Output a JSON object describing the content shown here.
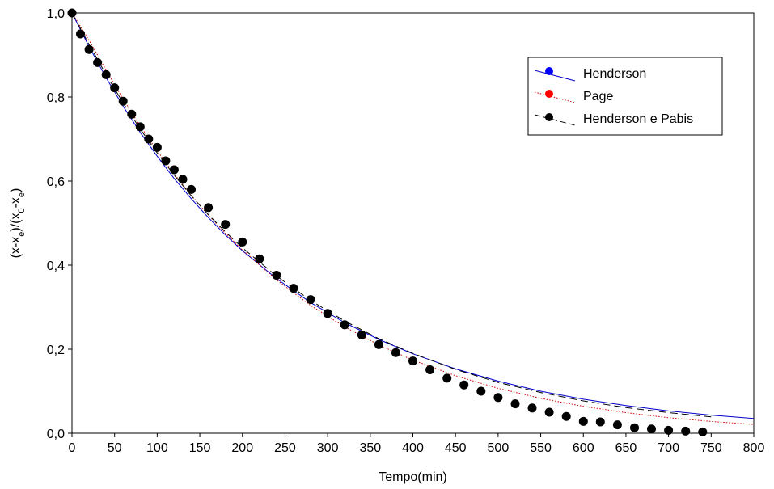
{
  "chart_data": {
    "type": "scatter",
    "xlabel": "Tempo(min)",
    "ylabel_parts": [
      "(x-x",
      "e",
      ")/(x",
      "0",
      "-x",
      "e",
      ")"
    ],
    "xlim": [
      0,
      800
    ],
    "ylim": [
      0.0,
      1.0
    ],
    "xticks": [
      "0",
      "50",
      "100",
      "150",
      "200",
      "250",
      "300",
      "350",
      "400",
      "450",
      "500",
      "550",
      "600",
      "650",
      "700",
      "750",
      "800"
    ],
    "yticks": [
      "0,0",
      "0,2",
      "0,4",
      "0,6",
      "0,8",
      "1,0"
    ],
    "grid": false,
    "legend_position": "top-right",
    "series": [
      {
        "name": "Henderson",
        "kind": "line",
        "style": "solid",
        "color": "#0000cc",
        "marker_color": "#0000ff",
        "x": [
          0,
          20,
          40,
          60,
          80,
          100,
          120,
          140,
          160,
          180,
          200,
          240,
          280,
          320,
          360,
          400,
          450,
          500,
          550,
          600,
          650,
          700,
          750,
          800
        ],
        "y": [
          1.0,
          0.92,
          0.846,
          0.778,
          0.716,
          0.659,
          0.606,
          0.558,
          0.513,
          0.472,
          0.434,
          0.368,
          0.311,
          0.263,
          0.223,
          0.189,
          0.153,
          0.124,
          0.1,
          0.081,
          0.066,
          0.053,
          0.043,
          0.035
        ]
      },
      {
        "name": "Page",
        "kind": "line",
        "style": "dotted",
        "color": "#cc0000",
        "marker_color": "#ff0000",
        "x": [
          0,
          20,
          40,
          60,
          80,
          100,
          120,
          140,
          160,
          180,
          200,
          240,
          280,
          320,
          360,
          400,
          450,
          500,
          550,
          600,
          650,
          700,
          750,
          800
        ],
        "y": [
          1.0,
          0.935,
          0.864,
          0.795,
          0.731,
          0.672,
          0.617,
          0.566,
          0.519,
          0.476,
          0.436,
          0.365,
          0.304,
          0.253,
          0.21,
          0.174,
          0.137,
          0.107,
          0.083,
          0.064,
          0.049,
          0.037,
          0.028,
          0.021
        ]
      },
      {
        "name": "Henderson e Pabis",
        "kind": "line+markers",
        "style": "dashed",
        "color": "#000000",
        "marker_color": "#000000",
        "line_x": [
          0,
          20,
          40,
          60,
          80,
          100,
          120,
          140,
          160,
          180,
          200,
          240,
          280,
          320,
          360,
          400,
          450,
          500,
          550,
          600,
          650,
          700,
          750
        ],
        "line_y": [
          1.0,
          0.925,
          0.853,
          0.786,
          0.724,
          0.667,
          0.614,
          0.565,
          0.52,
          0.479,
          0.441,
          0.374,
          0.316,
          0.267,
          0.225,
          0.19,
          0.152,
          0.121,
          0.097,
          0.077,
          0.061,
          0.049,
          0.039
        ],
        "x": [
          0,
          10,
          20,
          30,
          40,
          50,
          60,
          70,
          80,
          90,
          100,
          110,
          120,
          130,
          140,
          160,
          180,
          200,
          220,
          240,
          260,
          280,
          300,
          320,
          340,
          360,
          380,
          400,
          420,
          440,
          460,
          480,
          500,
          520,
          540,
          560,
          580,
          600,
          620,
          640,
          660,
          680,
          700,
          720,
          740
        ],
        "y": [
          1.0,
          0.95,
          0.913,
          0.882,
          0.853,
          0.822,
          0.79,
          0.759,
          0.729,
          0.7,
          0.68,
          0.648,
          0.627,
          0.604,
          0.58,
          0.537,
          0.497,
          0.455,
          0.415,
          0.376,
          0.345,
          0.318,
          0.285,
          0.258,
          0.234,
          0.211,
          0.192,
          0.172,
          0.151,
          0.131,
          0.115,
          0.1,
          0.085,
          0.07,
          0.06,
          0.05,
          0.04,
          0.028,
          0.027,
          0.02,
          0.013,
          0.01,
          0.007,
          0.005,
          0.003
        ]
      }
    ]
  }
}
